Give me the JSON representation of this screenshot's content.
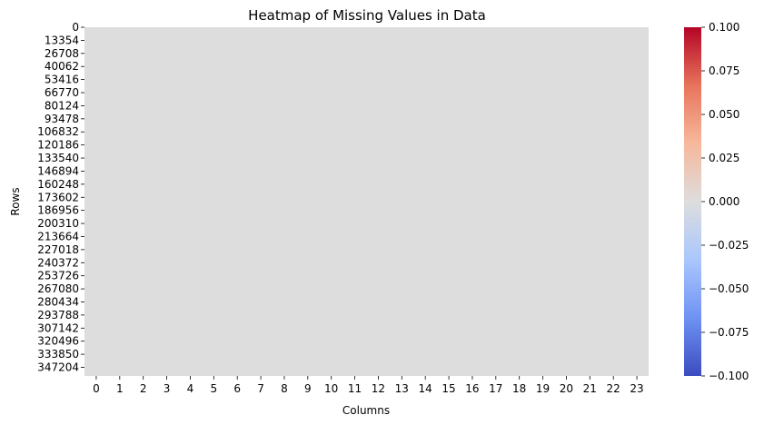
{
  "chart_data": {
    "type": "heatmap",
    "title": "Heatmap of Missing Values in Data",
    "xlabel": "Columns",
    "ylabel": "Rows",
    "x_tick_labels": [
      "0",
      "1",
      "2",
      "3",
      "4",
      "5",
      "6",
      "7",
      "8",
      "9",
      "10",
      "11",
      "12",
      "13",
      "14",
      "15",
      "16",
      "17",
      "18",
      "19",
      "20",
      "21",
      "22",
      "23"
    ],
    "y_tick_labels": [
      "0",
      "13354",
      "26708",
      "40062",
      "53416",
      "66770",
      "80124",
      "93478",
      "106832",
      "120186",
      "133540",
      "146894",
      "160248",
      "173602",
      "186956",
      "200310",
      "213664",
      "227018",
      "240372",
      "253726",
      "267080",
      "280434",
      "293788",
      "307142",
      "320496",
      "333850",
      "347204"
    ],
    "row_count": 356000,
    "column_count": 24,
    "cell_value": 0,
    "cell_color": "#dddddd",
    "colormap": "coolwarm",
    "colorbar": {
      "min": -0.1,
      "max": 0.1,
      "tick_labels": [
        "−0.100",
        "−0.075",
        "−0.050",
        "−0.025",
        "0.000",
        "0.025",
        "0.050",
        "0.075",
        "0.100"
      ],
      "tick_values": [
        -0.1,
        -0.075,
        -0.05,
        -0.025,
        0,
        0.025,
        0.05,
        0.075,
        0.1
      ],
      "stops": [
        "#3b4cc0",
        "#6f92f3",
        "#aac7fd",
        "#dddddd",
        "#f7b89c",
        "#e7745b",
        "#b40426"
      ]
    }
  }
}
